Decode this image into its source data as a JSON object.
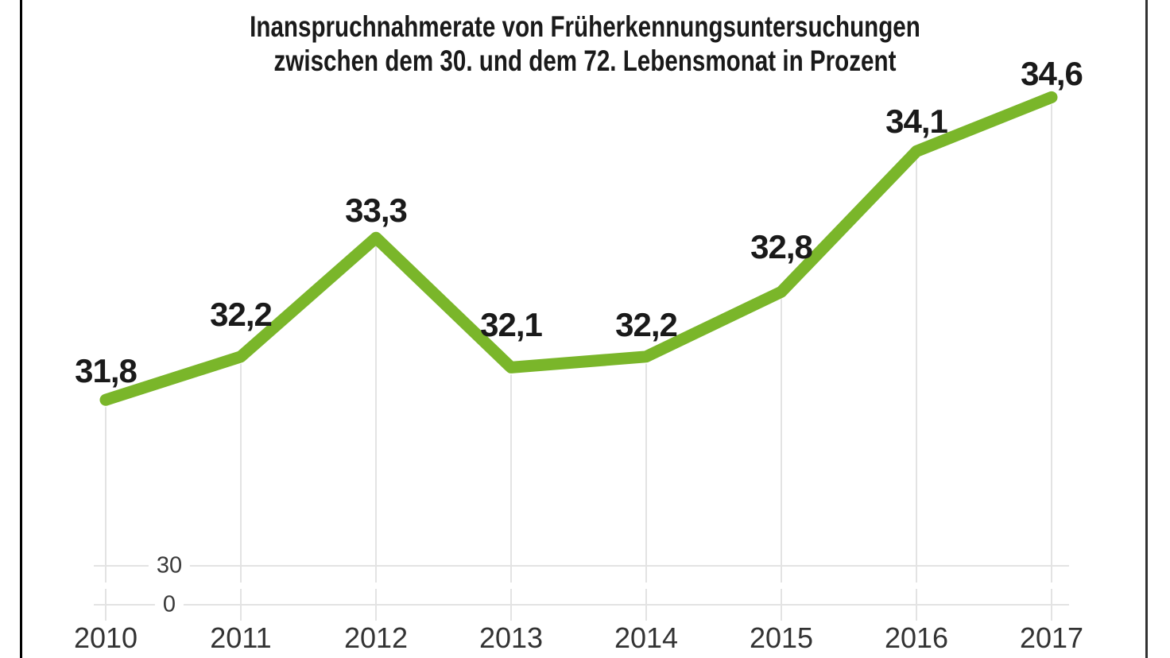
{
  "title": {
    "line1": "Inanspruchnahmerate von Früherkennungsuntersuchungen",
    "line2": "zwischen dem 30. und dem 72. Lebensmonat in Prozent"
  },
  "chart_data": {
    "type": "line",
    "title": "Inanspruchnahmerate von Früherkennungsuntersuchungen zwischen dem 30. und dem 72. Lebensmonat in Prozent",
    "unit": "Prozent",
    "categories": [
      "2010",
      "2011",
      "2012",
      "2013",
      "2014",
      "2015",
      "2016",
      "2017"
    ],
    "values": [
      31.8,
      32.2,
      33.3,
      32.1,
      32.2,
      32.8,
      34.1,
      34.6
    ],
    "value_labels": [
      "31,8",
      "32,2",
      "33,3",
      "32,1",
      "32,2",
      "32,8",
      "34,1",
      "34,6"
    ],
    "y_axis": {
      "tick_labels": [
        "30",
        "0"
      ],
      "tick_values": [
        30,
        0
      ],
      "broken_axis": true
    },
    "legend": "none",
    "grid": "vertical-drop-lines-per-year-plus-two-horizontal-lines"
  },
  "colors": {
    "line": "#7ab62a",
    "grid": "#e3e3e3",
    "title_text": "#1a1a1a",
    "label_text": "#1a1a1a",
    "axis_text": "#3a3a3a",
    "border_left": "#000000",
    "border_right": "#323232",
    "background": "#ffffff"
  }
}
